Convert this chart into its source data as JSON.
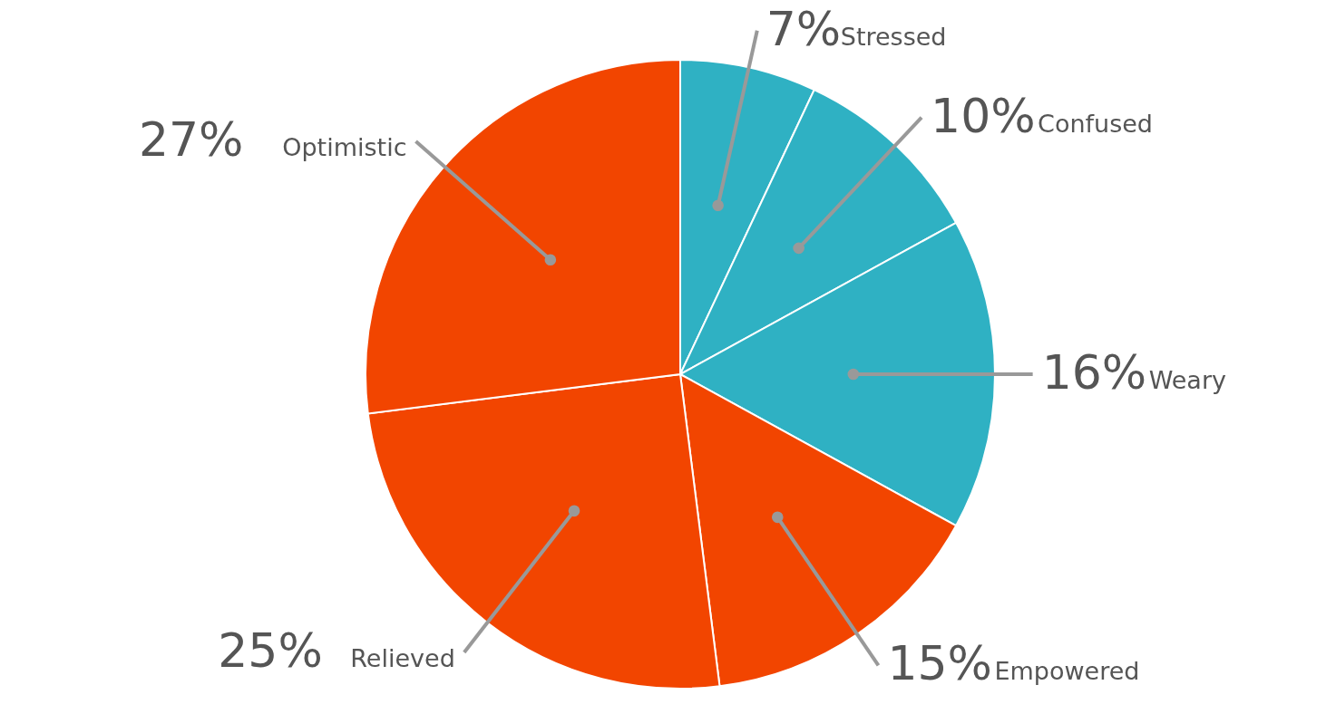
{
  "chart_data": {
    "type": "pie",
    "categories": [
      "Stressed",
      "Confused",
      "Weary",
      "Empowered",
      "Relieved",
      "Optimistic"
    ],
    "values": [
      7,
      10,
      16,
      15,
      25,
      27
    ],
    "value_labels": [
      "7%",
      "10%",
      "16%",
      "15%",
      "25%",
      "27%"
    ],
    "colors": [
      "#2fb1c3",
      "#2fb1c3",
      "#2fb1c3",
      "#f24500",
      "#f24500",
      "#f24500"
    ]
  }
}
